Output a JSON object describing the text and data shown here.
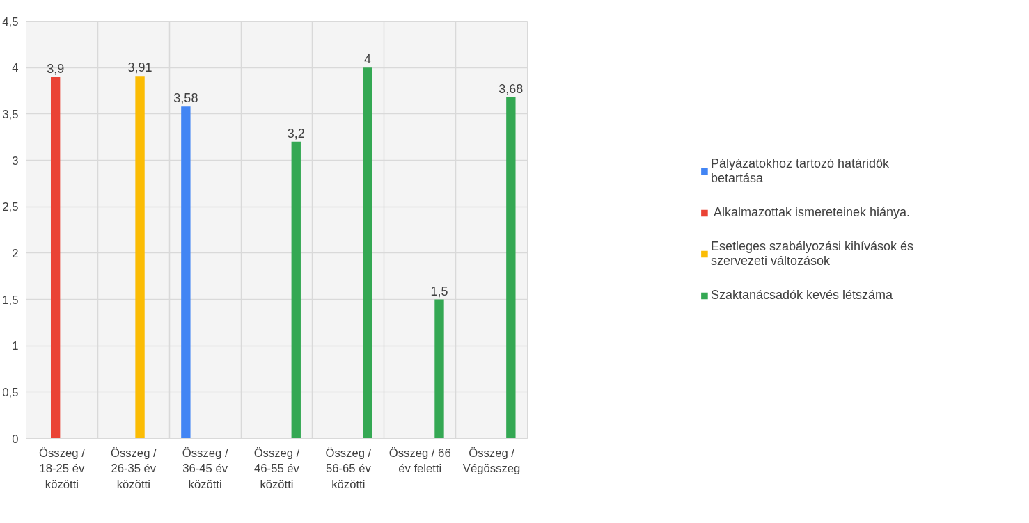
{
  "chart_data": {
    "type": "bar",
    "categories": [
      "Összeg / 18-25 év közötti",
      "Összeg / 26-35 év közötti",
      "Összeg / 36-45 év közötti",
      "Összeg / 46-55 év közötti",
      "Összeg / 56-65 év közötti",
      "Összeg / 66 év feletti",
      "Összeg / Végösszeg"
    ],
    "series": [
      {
        "name": "Pályázatokhoz tartozó határidők betartása",
        "color": "#4285f4",
        "values": [
          null,
          null,
          3.58,
          null,
          null,
          null,
          null
        ],
        "value_labels": [
          null,
          null,
          "3,58",
          null,
          null,
          null,
          null
        ]
      },
      {
        "name": " Alkalmazottak ismereteinek hiánya.",
        "color": "#ea4335",
        "values": [
          3.9,
          null,
          null,
          null,
          null,
          null,
          null
        ],
        "value_labels": [
          "3,9",
          null,
          null,
          null,
          null,
          null,
          null
        ]
      },
      {
        "name": "Esetleges szabályozási kihívások és szervezeti változások",
        "color": "#fbbc04",
        "values": [
          null,
          3.91,
          null,
          null,
          null,
          null,
          null
        ],
        "value_labels": [
          null,
          "3,91",
          null,
          null,
          null,
          null,
          null
        ]
      },
      {
        "name": "Szaktanácsadók kevés létszáma",
        "color": "#34a853",
        "values": [
          null,
          null,
          null,
          3.2,
          4,
          1.5,
          3.68
        ],
        "value_labels": [
          null,
          null,
          null,
          "3,2",
          "4",
          "1,5",
          "3,68"
        ]
      }
    ],
    "ylim": [
      0,
      4.5
    ],
    "yticks": [
      0,
      {
        "value": 0.5,
        "label": "0,5"
      },
      1,
      {
        "value": 1.5,
        "label": "1,5"
      },
      2,
      {
        "value": 2.5,
        "label": "2,5"
      },
      3,
      {
        "value": 3.5,
        "label": "3,5"
      },
      4,
      {
        "value": 4.5,
        "label": "4,5"
      }
    ],
    "grid": true,
    "legend": "right"
  }
}
